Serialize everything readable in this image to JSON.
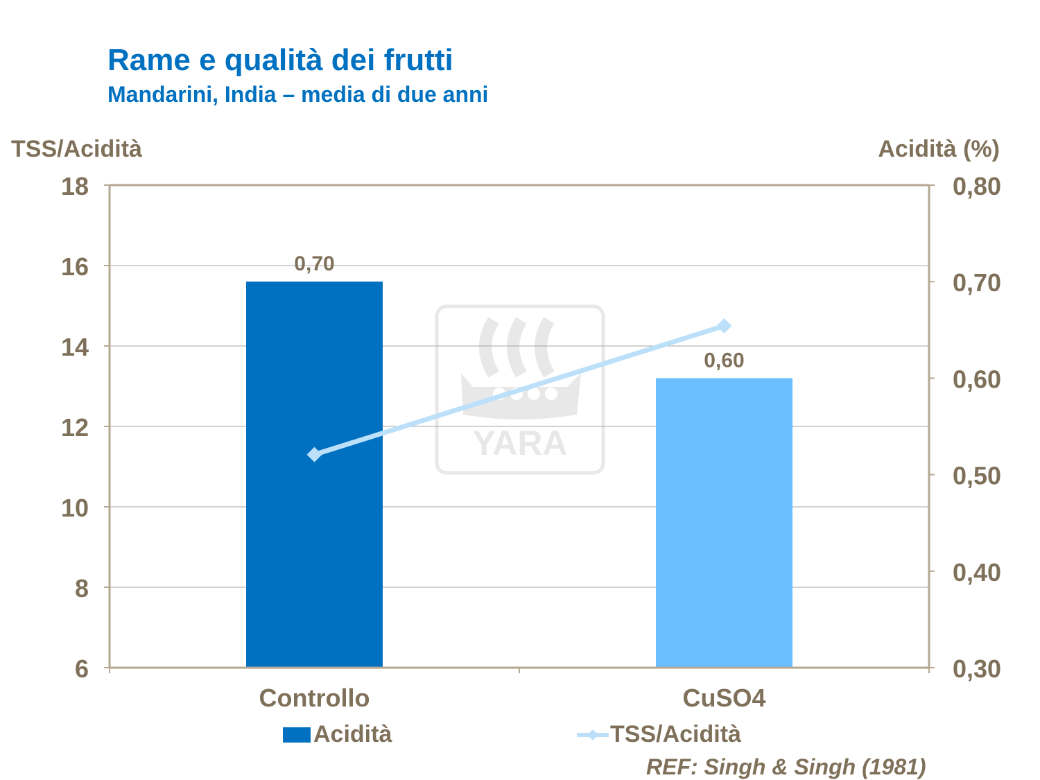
{
  "header": {
    "title": "Rame e qualità dei frutti",
    "subtitle": "Mandarini, India – media di due anni"
  },
  "reference": "REF: Singh & Singh (1981)",
  "watermark": {
    "text": "YARA"
  },
  "colors": {
    "accent": "#0070C0",
    "text": "#7F705A",
    "bar_controllo": "#0070C0",
    "bar_cuso4": "#6BBFFF",
    "line": "#BDE0FA"
  },
  "chart_data": {
    "type": "bar",
    "categories": [
      "Controllo",
      "CuSO4"
    ],
    "y_left": {
      "label": "TSS/Acidità",
      "ylim": [
        6,
        18
      ],
      "ticks": [
        "6",
        "8",
        "10",
        "12",
        "14",
        "16",
        "18"
      ]
    },
    "y_right": {
      "label": "Acidità (%)",
      "ylim": [
        0.3,
        0.8
      ],
      "ticks": [
        "0,30",
        "0,40",
        "0,50",
        "0,60",
        "0,70",
        "0,80"
      ]
    },
    "series": [
      {
        "name": "Acidità",
        "type": "bar",
        "axis": "right",
        "values": [
          0.7,
          0.6
        ],
        "data_labels": [
          "0,70",
          "0,60"
        ]
      },
      {
        "name": "TSS/Acidità",
        "type": "line",
        "axis": "left",
        "values": [
          11.3,
          14.5
        ]
      }
    ],
    "legend_position": "bottom",
    "grid": true
  }
}
